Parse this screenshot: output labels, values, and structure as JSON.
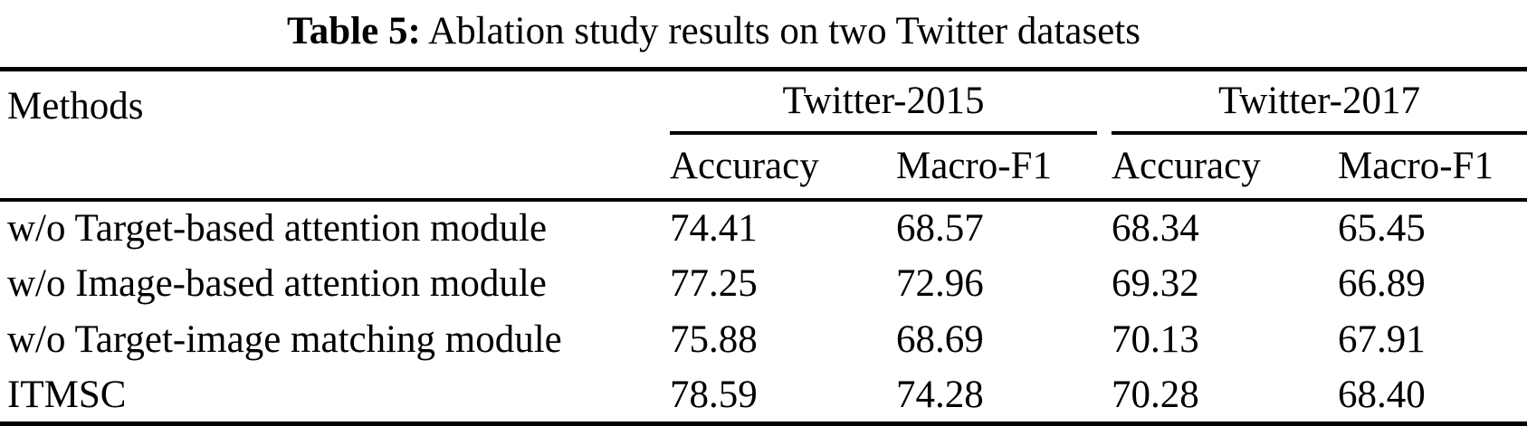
{
  "caption": {
    "label": "Table 5:",
    "text": " Ablation study results on two Twitter datasets"
  },
  "table": {
    "methods_header": "Methods",
    "groups": [
      {
        "label": "Twitter-2015"
      },
      {
        "label": "Twitter-2017"
      }
    ],
    "sub_headers": [
      "Accuracy",
      "Macro-F1",
      "Accuracy",
      "Macro-F1"
    ],
    "rows": [
      {
        "method": "w/o Target-based attention module",
        "values": [
          "74.41",
          "68.57",
          "68.34",
          "65.45"
        ]
      },
      {
        "method": "w/o Image-based attention module",
        "values": [
          "77.25",
          "72.96",
          "69.32",
          "66.89"
        ]
      },
      {
        "method": "w/o Target-image matching module",
        "values": [
          "75.88",
          "68.69",
          "70.13",
          "67.91"
        ]
      },
      {
        "method": "ITMSC",
        "values": [
          "78.59",
          "74.28",
          "70.28",
          "68.40"
        ]
      }
    ]
  },
  "chart_data": {
    "type": "table",
    "title": "Table 5: Ablation study results on two Twitter datasets",
    "categories": [
      "Twitter-2015 Accuracy",
      "Twitter-2015 Macro-F1",
      "Twitter-2017 Accuracy",
      "Twitter-2017 Macro-F1"
    ],
    "series": [
      {
        "name": "w/o Target-based attention module",
        "values": [
          74.41,
          68.57,
          68.34,
          65.45
        ]
      },
      {
        "name": "w/o Image-based attention module",
        "values": [
          77.25,
          72.96,
          69.32,
          66.89
        ]
      },
      {
        "name": "w/o Target-image matching module",
        "values": [
          75.88,
          68.69,
          70.13,
          67.91
        ]
      },
      {
        "name": "ITMSC",
        "values": [
          78.59,
          74.28,
          70.28,
          68.4
        ]
      }
    ]
  },
  "colors": {
    "text": "#000000",
    "background": "#ffffff",
    "rule": "#000000"
  }
}
